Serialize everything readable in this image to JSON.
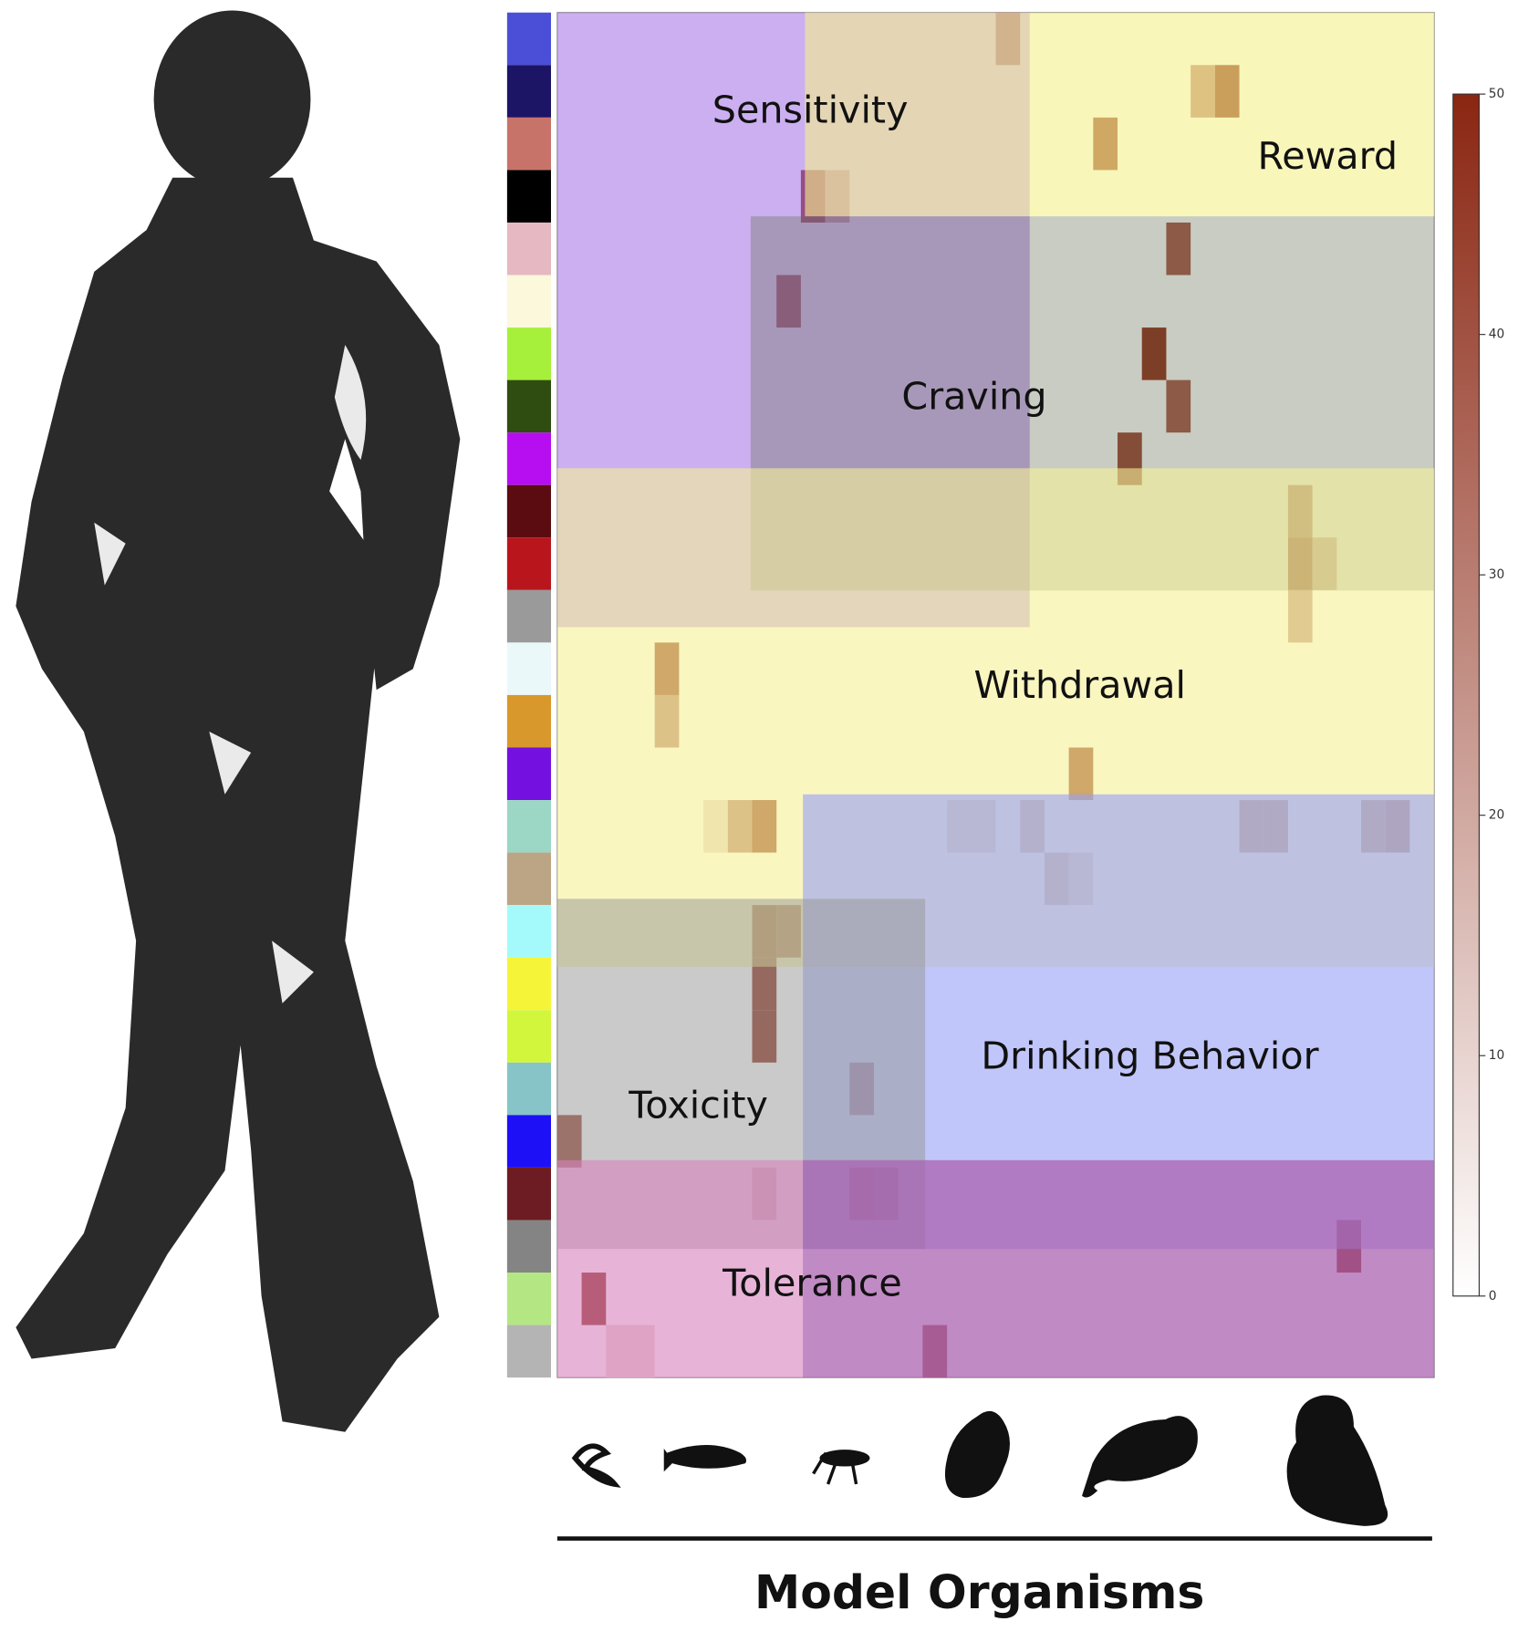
{
  "chart_data": {
    "type": "heatmap",
    "xlabel": "Model Organisms",
    "region_labels": [
      "Sensitivity",
      "Reward",
      "Craving",
      "Withdrawal",
      "Drinking Behavior",
      "Toxicity",
      "Tolerance"
    ],
    "row_colors": [
      "#4b4fd8",
      "#1c1464",
      "#c8736a",
      "#000000",
      "#e6b8c2",
      "#fbf8dc",
      "#a6f03c",
      "#2f4d10",
      "#b60ef0",
      "#5a0c10",
      "#b8161c",
      "#9a9a9a",
      "#eaf8fa",
      "#d8982c",
      "#7410e0",
      "#9cd6c4",
      "#bba584",
      "#a4fafa",
      "#f6f438",
      "#d2f63c",
      "#86c4c8",
      "#1e10f6",
      "#6c1c22",
      "#848484",
      "#b4e684",
      "#b4b4b4"
    ],
    "cells": [
      {
        "row": 0,
        "col": 18,
        "value": 45
      },
      {
        "row": 1,
        "col": 26,
        "value": 30
      },
      {
        "row": 1,
        "col": 27,
        "value": 50
      },
      {
        "row": 2,
        "col": 22,
        "value": 45
      },
      {
        "row": 3,
        "col": 10,
        "value": 50
      },
      {
        "row": 3,
        "col": 11,
        "value": 25
      },
      {
        "row": 4,
        "col": 25,
        "value": 40
      },
      {
        "row": 5,
        "col": 9,
        "value": 45
      },
      {
        "row": 6,
        "col": 24,
        "value": 50
      },
      {
        "row": 7,
        "col": 25,
        "value": 40
      },
      {
        "row": 8,
        "col": 23,
        "value": 45
      },
      {
        "row": 9,
        "col": 30,
        "value": 30
      },
      {
        "row": 10,
        "col": 30,
        "value": 40
      },
      {
        "row": 10,
        "col": 31,
        "value": 20
      },
      {
        "row": 11,
        "col": 30,
        "value": 25
      },
      {
        "row": 12,
        "col": 4,
        "value": 45
      },
      {
        "row": 13,
        "col": 4,
        "value": 30
      },
      {
        "row": 14,
        "col": 21,
        "value": 45
      },
      {
        "row": 15,
        "col": 6,
        "value": 10
      },
      {
        "row": 15,
        "col": 7,
        "value": 30
      },
      {
        "row": 15,
        "col": 8,
        "value": 45
      },
      {
        "row": 15,
        "col": 16,
        "value": 15
      },
      {
        "row": 15,
        "col": 17,
        "value": 15
      },
      {
        "row": 15,
        "col": 19,
        "value": 25
      },
      {
        "row": 15,
        "col": 28,
        "value": 35
      },
      {
        "row": 15,
        "col": 29,
        "value": 35
      },
      {
        "row": 15,
        "col": 33,
        "value": 35
      },
      {
        "row": 15,
        "col": 34,
        "value": 40
      },
      {
        "row": 16,
        "col": 20,
        "value": 25
      },
      {
        "row": 16,
        "col": 21,
        "value": 15
      },
      {
        "row": 17,
        "col": 8,
        "value": 45
      },
      {
        "row": 17,
        "col": 9,
        "value": 40
      },
      {
        "row": 18,
        "col": 8,
        "value": 45
      },
      {
        "row": 19,
        "col": 8,
        "value": 45
      },
      {
        "row": 20,
        "col": 12,
        "value": 30
      },
      {
        "row": 21,
        "col": 0,
        "value": 40
      },
      {
        "row": 22,
        "col": 8,
        "value": 15
      },
      {
        "row": 22,
        "col": 12,
        "value": 45
      },
      {
        "row": 22,
        "col": 13,
        "value": 35
      },
      {
        "row": 23,
        "col": 32,
        "value": 50
      },
      {
        "row": 24,
        "col": 1,
        "value": 50
      },
      {
        "row": 25,
        "col": 2,
        "value": 10
      },
      {
        "row": 25,
        "col": 3,
        "value": 10
      },
      {
        "row": 25,
        "col": 15,
        "value": 40
      }
    ],
    "colorbar_lim": [
      0,
      50
    ],
    "colorbar_ticks": [
      0,
      10,
      20,
      30,
      40,
      50
    ]
  }
}
